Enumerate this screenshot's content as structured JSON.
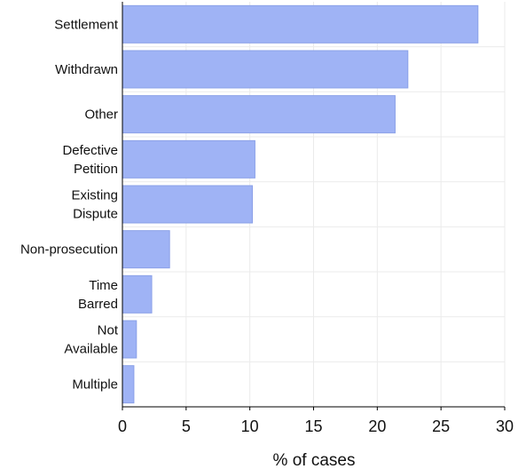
{
  "chart_data": {
    "type": "bar",
    "orientation": "horizontal",
    "categories": [
      [
        "Settlement"
      ],
      [
        "Withdrawn"
      ],
      [
        "Other"
      ],
      [
        "Defective",
        "Petition"
      ],
      [
        "Existing",
        "Dispute"
      ],
      [
        "Non-prosecution"
      ],
      [
        "Time",
        "Barred"
      ],
      [
        "Not",
        "Available"
      ],
      [
        "Multiple"
      ]
    ],
    "values": [
      27.9,
      22.4,
      21.4,
      10.4,
      10.2,
      3.7,
      2.3,
      1.1,
      0.9
    ],
    "title": "",
    "xlabel": "% of cases",
    "ylabel": "",
    "xlim": [
      0,
      30
    ],
    "xticks": [
      0,
      5,
      10,
      15,
      20,
      25,
      30
    ],
    "grid": true,
    "bar_color": "#9fb3f5"
  }
}
